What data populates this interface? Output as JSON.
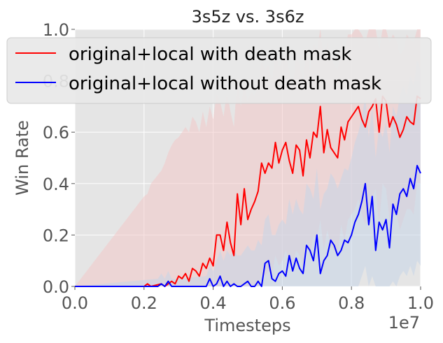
{
  "chart_data": {
    "type": "line",
    "title": "3s5z vs. 3s6z",
    "xlabel": "Timesteps",
    "ylabel": "Win Rate",
    "x_offset_text": "1e7",
    "xlim": [
      0,
      1.0
    ],
    "ylim": [
      0,
      1.0
    ],
    "x_scale_label": "×1e7",
    "xticks": [
      0.0,
      0.2,
      0.4,
      0.6,
      0.8,
      1.0
    ],
    "xtick_labels": [
      "0.0",
      "0.2",
      "0.4",
      "0.6",
      "0.8",
      "1.0"
    ],
    "yticks": [
      0.0,
      0.2,
      0.4,
      0.6,
      0.8,
      1.0
    ],
    "ytick_labels": [
      "0.0",
      "0.2",
      "0.4",
      "0.6",
      "0.8",
      "1.0"
    ],
    "grid": true,
    "legend_position": "top-left",
    "series": [
      {
        "name": "original+local with death mask",
        "color": "#ff0000",
        "band_color": "#f2c8c8",
        "x": [
          0.0,
          0.2,
          0.21,
          0.22,
          0.25,
          0.26,
          0.27,
          0.28,
          0.29,
          0.3,
          0.31,
          0.32,
          0.33,
          0.34,
          0.35,
          0.36,
          0.37,
          0.38,
          0.39,
          0.4,
          0.41,
          0.42,
          0.43,
          0.44,
          0.45,
          0.46,
          0.47,
          0.48,
          0.49,
          0.5,
          0.51,
          0.52,
          0.53,
          0.54,
          0.55,
          0.56,
          0.57,
          0.58,
          0.59,
          0.6,
          0.61,
          0.62,
          0.63,
          0.64,
          0.65,
          0.66,
          0.67,
          0.68,
          0.69,
          0.7,
          0.71,
          0.72,
          0.73,
          0.74,
          0.75,
          0.76,
          0.77,
          0.78,
          0.79,
          0.8,
          0.81,
          0.82,
          0.83,
          0.84,
          0.85,
          0.86,
          0.87,
          0.88,
          0.89,
          0.9,
          0.91,
          0.92,
          0.93,
          0.94,
          0.95,
          0.96,
          0.97,
          0.98,
          0.99,
          1.0
        ],
        "values": [
          0.0,
          0.0,
          0.01,
          0.0,
          0.01,
          0.0,
          0.01,
          0.02,
          0.01,
          0.04,
          0.03,
          0.05,
          0.02,
          0.07,
          0.06,
          0.04,
          0.09,
          0.07,
          0.11,
          0.08,
          0.2,
          0.2,
          0.14,
          0.25,
          0.17,
          0.12,
          0.36,
          0.24,
          0.38,
          0.26,
          0.3,
          0.33,
          0.37,
          0.48,
          0.44,
          0.48,
          0.46,
          0.56,
          0.48,
          0.53,
          0.56,
          0.49,
          0.44,
          0.55,
          0.53,
          0.43,
          0.57,
          0.5,
          0.6,
          0.58,
          0.7,
          0.52,
          0.61,
          0.54,
          0.52,
          0.5,
          0.62,
          0.57,
          0.64,
          0.66,
          0.68,
          0.7,
          0.65,
          0.62,
          0.68,
          0.7,
          0.73,
          0.6,
          0.74,
          0.72,
          0.62,
          0.66,
          0.63,
          0.58,
          0.61,
          0.66,
          0.64,
          0.63,
          0.74,
          0.73
        ],
        "band_upper": [
          0.0,
          0.35,
          0.36,
          0.4,
          0.45,
          0.48,
          0.52,
          0.55,
          0.57,
          0.58,
          0.6,
          0.62,
          0.6,
          0.66,
          0.64,
          0.6,
          0.68,
          0.62,
          0.7,
          0.65,
          0.75,
          0.72,
          0.66,
          0.76,
          0.68,
          0.62,
          0.82,
          0.7,
          0.8,
          0.72,
          0.76,
          0.74,
          0.78,
          0.88,
          0.84,
          0.86,
          0.8,
          0.92,
          0.85,
          0.88,
          0.9,
          0.84,
          0.78,
          0.9,
          0.86,
          0.8,
          0.92,
          0.84,
          0.95,
          0.92,
          1.0,
          0.88,
          0.95,
          0.9,
          0.86,
          0.84,
          0.96,
          0.92,
          0.98,
          0.98,
          1.0,
          1.0,
          0.98,
          0.95,
          1.0,
          1.0,
          1.0,
          0.92,
          1.0,
          1.0,
          0.95,
          0.98,
          0.96,
          0.9,
          0.92,
          0.98,
          0.96,
          0.95,
          1.0,
          1.0
        ],
        "band_lower": [
          0.0,
          0.0,
          0.0,
          0.0,
          0.0,
          0.0,
          0.0,
          0.0,
          0.0,
          0.0,
          0.0,
          0.0,
          0.0,
          0.0,
          0.0,
          0.0,
          0.0,
          0.0,
          0.0,
          0.0,
          0.0,
          0.0,
          0.0,
          0.0,
          0.0,
          0.0,
          0.0,
          0.0,
          0.0,
          0.0,
          0.0,
          0.0,
          0.0,
          0.05,
          0.04,
          0.06,
          0.05,
          0.12,
          0.08,
          0.1,
          0.14,
          0.1,
          0.08,
          0.14,
          0.12,
          0.08,
          0.18,
          0.12,
          0.2,
          0.18,
          0.26,
          0.14,
          0.22,
          0.16,
          0.14,
          0.12,
          0.24,
          0.18,
          0.26,
          0.28,
          0.3,
          0.34,
          0.28,
          0.24,
          0.3,
          0.34,
          0.38,
          0.24,
          0.4,
          0.38,
          0.26,
          0.3,
          0.28,
          0.22,
          0.26,
          0.3,
          0.3,
          0.28,
          0.4,
          0.4
        ]
      },
      {
        "name": "original+local without death mask",
        "color": "#0000ff",
        "band_color": "#c6d6e8",
        "x": [
          0.0,
          0.24,
          0.25,
          0.26,
          0.27,
          0.28,
          0.3,
          0.38,
          0.39,
          0.4,
          0.41,
          0.42,
          0.43,
          0.44,
          0.45,
          0.46,
          0.47,
          0.48,
          0.49,
          0.5,
          0.51,
          0.52,
          0.53,
          0.54,
          0.55,
          0.56,
          0.57,
          0.58,
          0.59,
          0.6,
          0.61,
          0.62,
          0.63,
          0.64,
          0.65,
          0.66,
          0.67,
          0.68,
          0.69,
          0.7,
          0.71,
          0.72,
          0.73,
          0.74,
          0.75,
          0.76,
          0.77,
          0.78,
          0.79,
          0.8,
          0.81,
          0.82,
          0.83,
          0.84,
          0.85,
          0.86,
          0.87,
          0.88,
          0.89,
          0.9,
          0.91,
          0.92,
          0.93,
          0.94,
          0.95,
          0.96,
          0.97,
          0.98,
          0.99,
          1.0
        ],
        "values": [
          0.0,
          0.0,
          0.01,
          0.0,
          0.02,
          0.0,
          0.0,
          0.0,
          0.03,
          0.0,
          0.01,
          0.04,
          0.0,
          0.02,
          0.0,
          0.01,
          0.0,
          0.0,
          0.01,
          0.02,
          0.0,
          0.0,
          0.02,
          0.0,
          0.09,
          0.1,
          0.03,
          0.02,
          0.05,
          0.06,
          0.04,
          0.12,
          0.06,
          0.11,
          0.07,
          0.05,
          0.16,
          0.14,
          0.1,
          0.2,
          0.05,
          0.1,
          0.12,
          0.18,
          0.16,
          0.12,
          0.14,
          0.18,
          0.17,
          0.2,
          0.25,
          0.28,
          0.33,
          0.4,
          0.24,
          0.35,
          0.14,
          0.25,
          0.22,
          0.26,
          0.15,
          0.32,
          0.28,
          0.36,
          0.38,
          0.35,
          0.42,
          0.38,
          0.47,
          0.44
        ],
        "band_upper": [
          0.0,
          0.03,
          0.05,
          0.03,
          0.06,
          0.03,
          0.03,
          0.04,
          0.08,
          0.06,
          0.1,
          0.14,
          0.1,
          0.14,
          0.12,
          0.14,
          0.12,
          0.12,
          0.14,
          0.16,
          0.14,
          0.14,
          0.18,
          0.16,
          0.26,
          0.28,
          0.2,
          0.2,
          0.24,
          0.26,
          0.24,
          0.34,
          0.28,
          0.34,
          0.3,
          0.28,
          0.4,
          0.38,
          0.34,
          0.46,
          0.3,
          0.36,
          0.38,
          0.44,
          0.42,
          0.38,
          0.42,
          0.46,
          0.45,
          0.5,
          0.56,
          0.6,
          0.66,
          0.74,
          0.58,
          0.7,
          0.5,
          0.62,
          0.58,
          0.64,
          0.52,
          0.7,
          0.66,
          0.74,
          0.78,
          0.74,
          0.82,
          0.78,
          0.88,
          0.84
        ],
        "band_lower": [
          0.0,
          0.0,
          0.0,
          0.0,
          0.0,
          0.0,
          0.0,
          0.0,
          0.0,
          0.0,
          0.0,
          0.0,
          0.0,
          0.0,
          0.0,
          0.0,
          0.0,
          0.0,
          0.0,
          0.0,
          0.0,
          0.0,
          0.0,
          0.0,
          0.0,
          0.0,
          0.0,
          0.0,
          0.0,
          0.0,
          0.0,
          0.0,
          0.0,
          0.0,
          0.0,
          0.0,
          0.0,
          0.0,
          0.0,
          0.0,
          0.0,
          0.0,
          0.0,
          0.0,
          0.0,
          0.0,
          0.0,
          0.0,
          0.0,
          0.0,
          0.0,
          0.0,
          0.04,
          0.08,
          0.0,
          0.04,
          0.0,
          0.0,
          0.0,
          0.0,
          0.0,
          0.02,
          0.0,
          0.04,
          0.06,
          0.04,
          0.08,
          0.04,
          0.1,
          0.08
        ]
      }
    ]
  },
  "colors": {
    "plot_background": "#e5e5e5",
    "grid": "#ffffff",
    "tick_text": "#555555"
  }
}
